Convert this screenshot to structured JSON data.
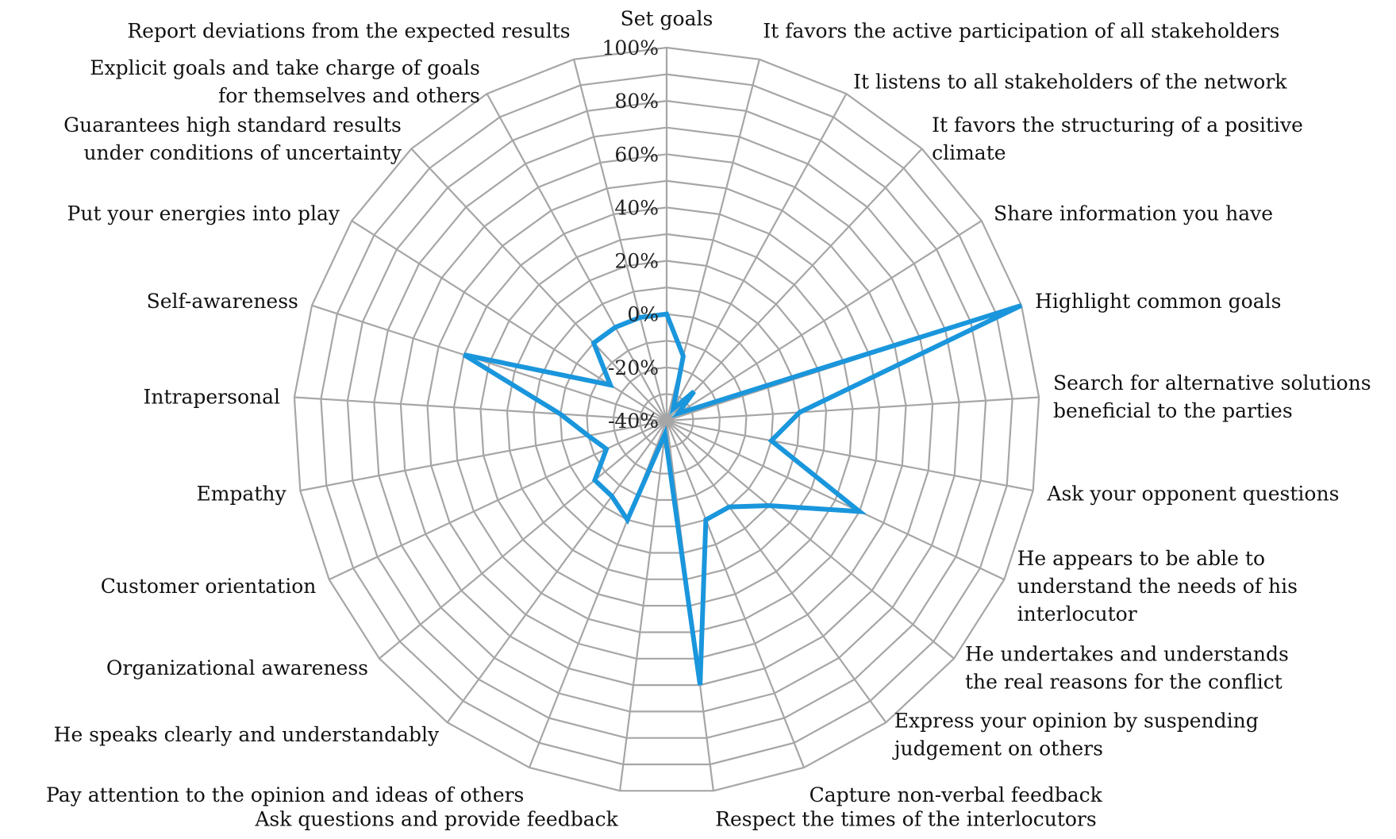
{
  "chart_data": {
    "type": "radar",
    "title": "",
    "rlim": [
      -40,
      100
    ],
    "rticks": [
      "-40%",
      "-20%",
      "0%",
      "20%",
      "40%",
      "60%",
      "80%",
      "100%"
    ],
    "categories": [
      "Set goals",
      "It favors the active participation of all stakeholders",
      "It listens to all stakeholders of the network",
      "It favors the structuring of a positive climate",
      "Share information you have",
      "Highlight common goals",
      "Search for alternative solutions beneficial to the parties",
      "Ask your opponent questions",
      "He appears to be able to understand the needs of his interlocutor",
      "He undertakes and understands the real reasons for the conflict",
      "Express your opinion by suspending judgement on others",
      "Capture non-verbal feedback",
      "Respect the times of the interlocutors",
      "Ask questions and provide feedback",
      "Pay attention to the opinion and ideas of others",
      "He speaks clearly and understandably",
      "Organizational awareness",
      "Customer orientation",
      "Empathy",
      "Intrapersonal",
      "Self-awareness",
      "Put your energies into play",
      "Guarantees high standard results under conditions of uncertainty",
      "Explicit goals and take charge of goals for themselves and others",
      "Report deviations from the expected results"
    ],
    "category_lines": [
      [
        "Set goals"
      ],
      [
        "It favors the active participation of all stakeholders"
      ],
      [
        "It listens to all stakeholders of the network"
      ],
      [
        "It favors the structuring of a positive",
        "climate"
      ],
      [
        "Share information you have"
      ],
      [
        "Highlight common goals"
      ],
      [
        "Search for alternative solutions",
        "beneficial to the parties"
      ],
      [
        "Ask your opponent questions"
      ],
      [
        "He appears to be able to",
        "understand the needs of his",
        "interlocutor"
      ],
      [
        "He undertakes and understands",
        "the real reasons for the conflict"
      ],
      [
        "Express your opinion by suspending",
        "judgement on others"
      ],
      [
        "Capture non-verbal feedback"
      ],
      [
        "Respect the times of the interlocutors"
      ],
      [
        "Ask questions and provide feedback"
      ],
      [
        "Pay attention to the opinion and ideas of others"
      ],
      [
        "He speaks clearly and understandably"
      ],
      [
        "Organizational awareness"
      ],
      [
        "Customer orientation"
      ],
      [
        "Empathy"
      ],
      [
        "Intrapersonal"
      ],
      [
        "Self-awareness"
      ],
      [
        "Put your energies into play"
      ],
      [
        "Guarantees high standard results",
        "under conditions of uncertainty"
      ],
      [
        "Explicit goals and take charge of goals",
        "for themselves and others"
      ],
      [
        "Report deviations from the expected results"
      ]
    ],
    "series": [
      {
        "values": [
          0,
          -15,
          -35,
          -25,
          -35,
          100,
          10,
          0,
          40,
          10,
          0,
          0,
          60,
          -35,
          0,
          -5,
          -5,
          -15,
          -10,
          0,
          40,
          -15,
          0,
          0,
          0
        ]
      }
    ],
    "colors": {
      "grid": "#a6a6a6",
      "series": "#1a96dc",
      "text": "#111111"
    },
    "grid": true,
    "legend": "none"
  }
}
